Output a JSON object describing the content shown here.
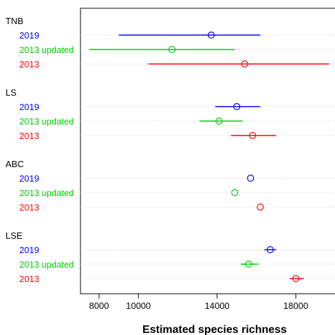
{
  "chart_data": {
    "type": "scatter",
    "subtype": "dot-and-interval",
    "xlabel": "Estimated species richness",
    "xlim": [
      7300,
      20000
    ],
    "xticks": [
      8000,
      10000,
      14000,
      18000
    ],
    "xtick_labels": [
      "8000",
      "10000",
      "14000",
      "18000"
    ],
    "grid": "dotted horizontal lines per row",
    "colors": {
      "2019": "#0000ff",
      "2013 updated": "#00cc00",
      "2013": "#ff0000"
    },
    "groups": [
      {
        "name": "TNB",
        "rows": [
          {
            "label": "2019",
            "estimate": 13700,
            "lower": 9000,
            "upper": 16200
          },
          {
            "label": "2013 updated",
            "estimate": 11700,
            "lower": 7500,
            "upper": 14900
          },
          {
            "label": "2013",
            "estimate": 15400,
            "lower": 10500,
            "upper": 19700
          }
        ]
      },
      {
        "name": "LS",
        "rows": [
          {
            "label": "2019",
            "estimate": 15000,
            "lower": 13900,
            "upper": 16200
          },
          {
            "label": "2013 updated",
            "estimate": 14100,
            "lower": 13100,
            "upper": 15300
          },
          {
            "label": "2013",
            "estimate": 15800,
            "lower": 14700,
            "upper": 17000
          }
        ]
      },
      {
        "name": "ABC",
        "rows": [
          {
            "label": "2019",
            "estimate": 15700,
            "lower": 15700,
            "upper": 15700
          },
          {
            "label": "2013 updated",
            "estimate": 14900,
            "lower": 14900,
            "upper": 14900
          },
          {
            "label": "2013",
            "estimate": 16200,
            "lower": 16200,
            "upper": 16200
          }
        ]
      },
      {
        "name": "LSE",
        "rows": [
          {
            "label": "2019",
            "estimate": 16700,
            "lower": 16400,
            "upper": 17000
          },
          {
            "label": "2013 updated",
            "estimate": 15600,
            "lower": 15200,
            "upper": 16100
          },
          {
            "label": "2013",
            "estimate": 18000,
            "lower": 17700,
            "upper": 18400
          }
        ]
      }
    ]
  }
}
